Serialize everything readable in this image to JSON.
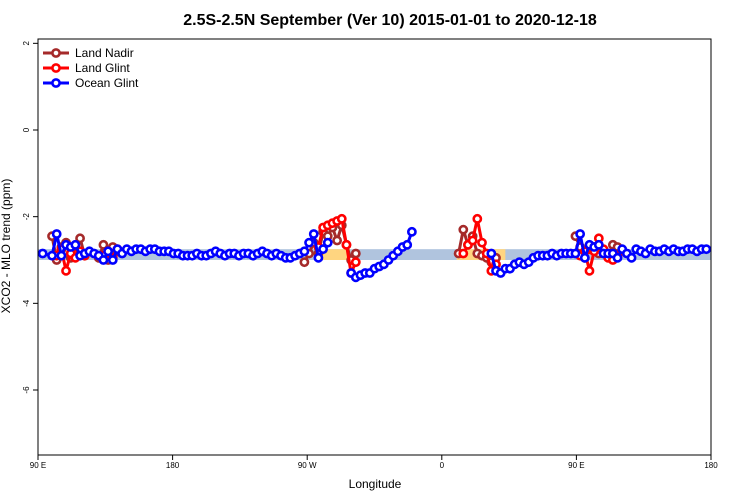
{
  "chart_data": {
    "type": "line",
    "title": "2.5S-2.5N September (Ver 10)   2015-01-01 to 2020-12-18",
    "xlabel": "Longitude",
    "ylabel": "XCO2 - MLO trend (ppm)",
    "xlim": [
      -90,
      270
    ],
    "ylim": [
      -7.5,
      2.1
    ],
    "x_ticks": [
      {
        "value": -90,
        "label": "90 E"
      },
      {
        "value": -18,
        "label": "180"
      },
      {
        "value": 54,
        "label": "90 W"
      },
      {
        "value": 126,
        "label": "0"
      },
      {
        "value": 198,
        "label": "90 E"
      },
      {
        "value": 270,
        "label": "180"
      }
    ],
    "y_ticks": [
      {
        "value": 2,
        "label": "2"
      },
      {
        "value": 0,
        "label": "0"
      },
      {
        "value": -2,
        "label": "-2"
      },
      {
        "value": -4,
        "label": "-4"
      },
      {
        "value": -6,
        "label": "-6"
      }
    ],
    "legend_position": "top-left",
    "bands": [
      {
        "x0": -90,
        "x1": 270,
        "y0": -3.0,
        "y1": -2.75,
        "color": "#b0c4de"
      },
      {
        "x0": 60,
        "x1": 77,
        "y0": -3.0,
        "y1": -2.75,
        "color": "#ffd580"
      },
      {
        "x0": 134,
        "x1": 160,
        "y0": -3.0,
        "y1": -2.75,
        "color": "#ffd580"
      }
    ],
    "series": [
      {
        "name": "Land Nadir",
        "color": "#a52a2a",
        "segments": [
          [
            [
              -82.5,
              -2.45
            ],
            [
              -80,
              -3.0
            ],
            [
              -77.5,
              -2.7
            ],
            [
              -75,
              -2.6
            ],
            [
              -72.5,
              -2.95
            ],
            [
              -70,
              -2.85
            ],
            [
              -67.5,
              -2.5
            ],
            [
              -65,
              -2.9
            ]
          ],
          [
            [
              -57.5,
              -2.95
            ],
            [
              -55,
              -2.65
            ],
            [
              -52.5,
              -3.0
            ],
            [
              -50,
              -2.7
            ],
            [
              -47.5,
              -2.8
            ]
          ],
          [
            [
              52.5,
              -3.05
            ],
            [
              55,
              -2.85
            ],
            [
              57.5,
              -2.6
            ],
            [
              60,
              -2.85
            ],
            [
              62.5,
              -2.35
            ],
            [
              65,
              -2.45
            ],
            [
              67.5,
              -2.25
            ],
            [
              70,
              -2.55
            ],
            [
              72.5,
              -2.2
            ],
            [
              75,
              -2.65
            ],
            [
              77.5,
              -3.0
            ],
            [
              80,
              -2.85
            ]
          ],
          [
            [
              135,
              -2.85
            ],
            [
              137.5,
              -2.3
            ],
            [
              140,
              -2.65
            ],
            [
              142.5,
              -2.45
            ],
            [
              145,
              -2.85
            ],
            [
              147.5,
              -2.9
            ],
            [
              150,
              -2.95
            ],
            [
              152.5,
              -3.05
            ],
            [
              155,
              -2.95
            ]
          ],
          [
            [
              197.5,
              -2.45
            ],
            [
              200,
              -2.7
            ],
            [
              202.5,
              -2.95
            ],
            [
              205,
              -2.75
            ],
            [
              207.5,
              -2.7
            ],
            [
              210,
              -2.85
            ],
            [
              212.5,
              -2.8
            ],
            [
              215,
              -2.9
            ],
            [
              217.5,
              -2.65
            ],
            [
              220,
              -2.7
            ]
          ]
        ]
      },
      {
        "name": "Land Glint",
        "color": "#ff0000",
        "segments": [
          [
            [
              -80,
              -2.9
            ],
            [
              -77.5,
              -2.75
            ],
            [
              -75,
              -3.25
            ],
            [
              -72.5,
              -2.85
            ],
            [
              -70,
              -2.95
            ],
            [
              -67.5,
              -2.8
            ],
            [
              -65,
              -2.9
            ]
          ],
          [
            [
              -55,
              -2.9
            ],
            [
              -52.5,
              -2.8
            ],
            [
              -50,
              -2.95
            ],
            [
              -47.5,
              -2.75
            ]
          ],
          [
            [
              60,
              -2.7
            ],
            [
              62.5,
              -2.25
            ],
            [
              65,
              -2.2
            ],
            [
              67.5,
              -2.15
            ],
            [
              70,
              -2.1
            ],
            [
              72.5,
              -2.05
            ],
            [
              75,
              -2.65
            ],
            [
              77.5,
              -3.3
            ],
            [
              80,
              -3.05
            ]
          ],
          [
            [
              137.5,
              -2.85
            ],
            [
              140,
              -2.65
            ],
            [
              142.5,
              -2.55
            ],
            [
              145,
              -2.05
            ],
            [
              147.5,
              -2.6
            ],
            [
              150,
              -2.85
            ],
            [
              152.5,
              -3.25
            ],
            [
              155,
              -3.1
            ]
          ],
          [
            [
              200,
              -2.9
            ],
            [
              202.5,
              -2.8
            ],
            [
              205,
              -3.25
            ],
            [
              207.5,
              -2.8
            ],
            [
              210,
              -2.5
            ],
            [
              212.5,
              -2.75
            ],
            [
              215,
              -2.95
            ],
            [
              217.5,
              -3.0
            ],
            [
              220,
              -2.9
            ]
          ]
        ]
      },
      {
        "name": "Ocean Glint",
        "color": "#0000ff",
        "segments": [
          [
            [
              -87.5,
              -2.85
            ],
            [
              -82.5,
              -2.9
            ],
            [
              -80,
              -2.4
            ],
            [
              -77.5,
              -2.9
            ],
            [
              -75,
              -2.65
            ],
            [
              -72.5,
              -2.7
            ],
            [
              -70,
              -2.65
            ],
            [
              -67.5,
              -2.9
            ],
            [
              -65,
              -2.85
            ],
            [
              -62.5,
              -2.8
            ],
            [
              -60,
              -2.85
            ],
            [
              -57.5,
              -2.9
            ],
            [
              -55,
              -3.0
            ],
            [
              -52.5,
              -2.8
            ],
            [
              -50,
              -3.0
            ],
            [
              -47.5,
              -2.75
            ],
            [
              -45,
              -2.85
            ],
            [
              -42.5,
              -2.75
            ],
            [
              -40,
              -2.8
            ],
            [
              -37.5,
              -2.75
            ],
            [
              -35,
              -2.75
            ],
            [
              -32.5,
              -2.8
            ],
            [
              -30,
              -2.75
            ],
            [
              -27.5,
              -2.75
            ],
            [
              -25,
              -2.8
            ],
            [
              -22.5,
              -2.8
            ],
            [
              -20,
              -2.8
            ],
            [
              -17.5,
              -2.85
            ],
            [
              -15,
              -2.85
            ],
            [
              -12.5,
              -2.9
            ],
            [
              -10,
              -2.9
            ],
            [
              -7.5,
              -2.9
            ],
            [
              -5,
              -2.85
            ],
            [
              -2.5,
              -2.9
            ],
            [
              0,
              -2.9
            ],
            [
              2.5,
              -2.85
            ],
            [
              5,
              -2.8
            ],
            [
              7.5,
              -2.85
            ],
            [
              10,
              -2.9
            ],
            [
              12.5,
              -2.85
            ],
            [
              15,
              -2.85
            ],
            [
              17.5,
              -2.9
            ],
            [
              20,
              -2.85
            ],
            [
              22.5,
              -2.85
            ],
            [
              25,
              -2.9
            ],
            [
              27.5,
              -2.85
            ],
            [
              30,
              -2.8
            ],
            [
              32.5,
              -2.85
            ],
            [
              35,
              -2.9
            ],
            [
              37.5,
              -2.85
            ],
            [
              40,
              -2.9
            ],
            [
              42.5,
              -2.95
            ],
            [
              45,
              -2.95
            ],
            [
              47.5,
              -2.9
            ],
            [
              50,
              -2.85
            ],
            [
              52.5,
              -2.8
            ],
            [
              55,
              -2.6
            ],
            [
              57.5,
              -2.4
            ],
            [
              60,
              -2.95
            ],
            [
              62.5,
              -2.75
            ],
            [
              65,
              -2.6
            ]
          ],
          [
            [
              77.5,
              -3.3
            ],
            [
              80,
              -3.4
            ],
            [
              82.5,
              -3.35
            ],
            [
              85,
              -3.3
            ],
            [
              87.5,
              -3.3
            ],
            [
              90,
              -3.2
            ],
            [
              92.5,
              -3.15
            ],
            [
              95,
              -3.1
            ],
            [
              97.5,
              -3.0
            ],
            [
              100,
              -2.9
            ],
            [
              102.5,
              -2.8
            ],
            [
              105,
              -2.7
            ],
            [
              107.5,
              -2.65
            ],
            [
              110,
              -2.35
            ]
          ],
          [
            [
              152.5,
              -2.85
            ],
            [
              155,
              -3.25
            ],
            [
              157.5,
              -3.3
            ],
            [
              160,
              -3.2
            ],
            [
              162.5,
              -3.2
            ],
            [
              165,
              -3.1
            ],
            [
              167.5,
              -3.05
            ],
            [
              170,
              -3.1
            ],
            [
              172.5,
              -3.05
            ],
            [
              175,
              -2.95
            ],
            [
              177.5,
              -2.9
            ],
            [
              180,
              -2.9
            ],
            [
              182.5,
              -2.9
            ],
            [
              185,
              -2.85
            ],
            [
              187.5,
              -2.9
            ],
            [
              190,
              -2.85
            ],
            [
              192.5,
              -2.85
            ],
            [
              195,
              -2.85
            ],
            [
              197.5,
              -2.85
            ],
            [
              200,
              -2.4
            ],
            [
              202.5,
              -2.95
            ],
            [
              205,
              -2.65
            ],
            [
              207.5,
              -2.7
            ],
            [
              210,
              -2.65
            ],
            [
              212.5,
              -2.85
            ],
            [
              215,
              -2.85
            ],
            [
              217.5,
              -2.85
            ],
            [
              220,
              -2.95
            ],
            [
              222.5,
              -2.75
            ],
            [
              225,
              -2.85
            ],
            [
              227.5,
              -2.95
            ],
            [
              230,
              -2.75
            ],
            [
              232.5,
              -2.8
            ],
            [
              235,
              -2.85
            ],
            [
              237.5,
              -2.75
            ],
            [
              240,
              -2.8
            ],
            [
              242.5,
              -2.8
            ],
            [
              245,
              -2.75
            ],
            [
              247.5,
              -2.8
            ],
            [
              250,
              -2.75
            ],
            [
              252.5,
              -2.8
            ],
            [
              255,
              -2.8
            ],
            [
              257.5,
              -2.75
            ],
            [
              260,
              -2.75
            ],
            [
              262.5,
              -2.8
            ],
            [
              265,
              -2.75
            ],
            [
              267.5,
              -2.75
            ]
          ]
        ]
      }
    ]
  }
}
